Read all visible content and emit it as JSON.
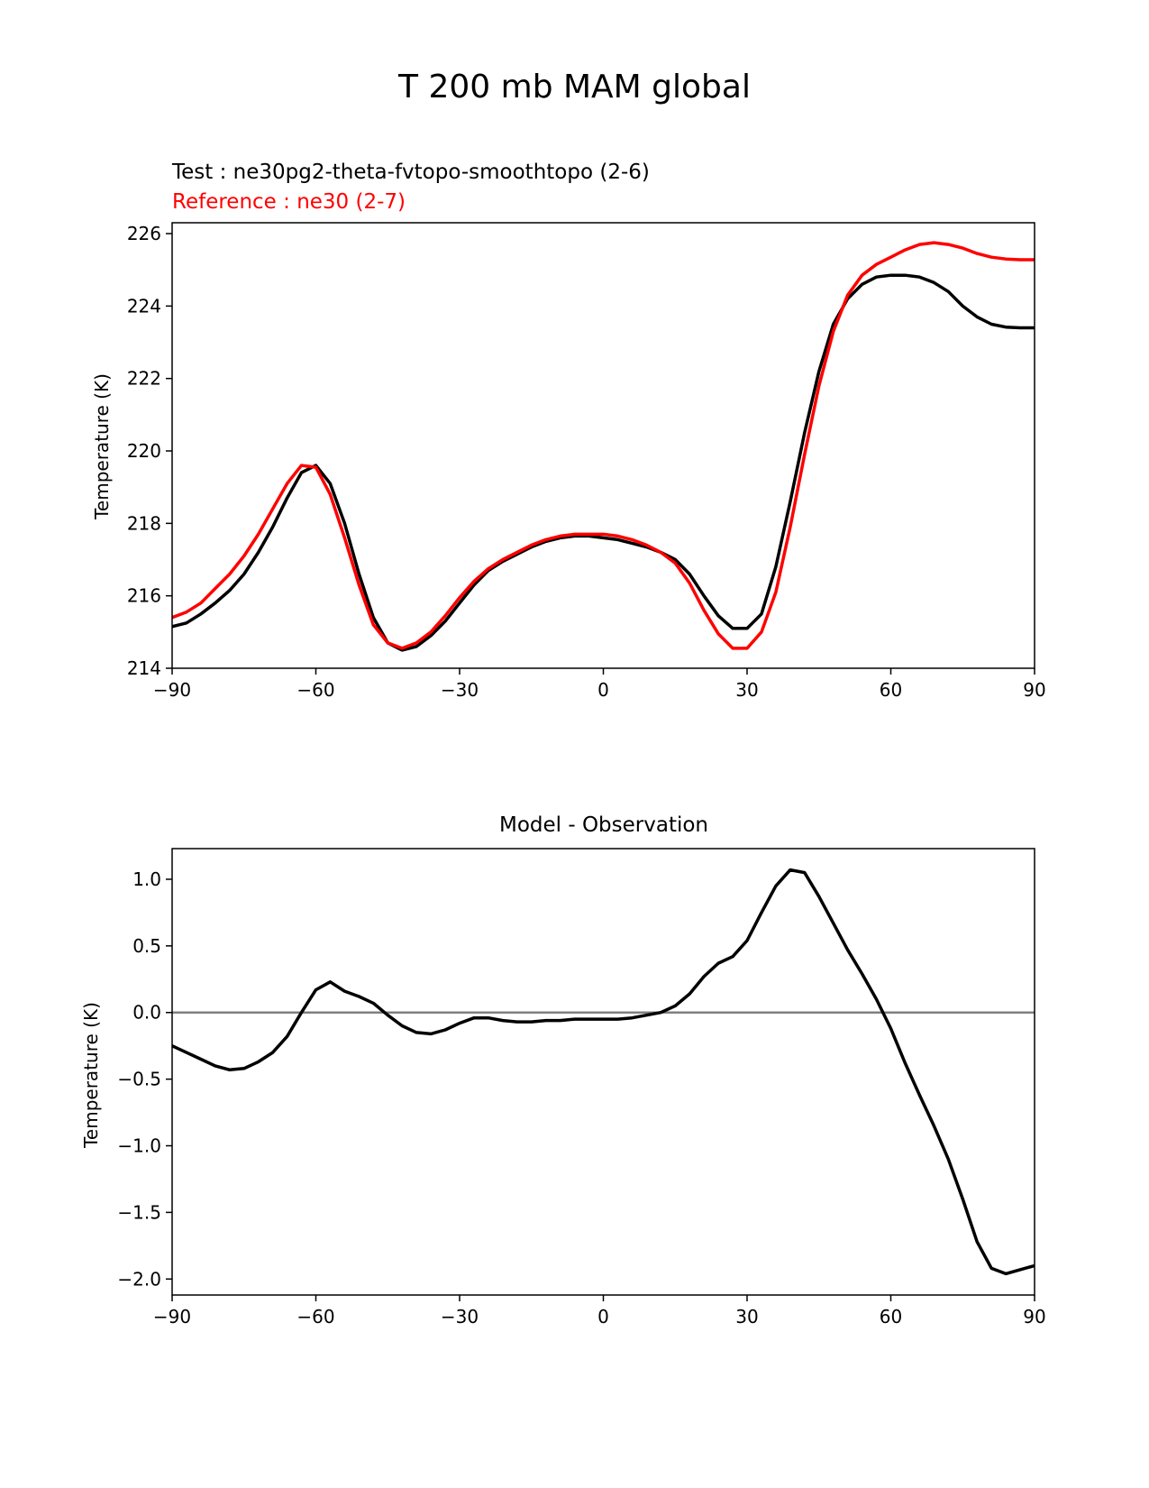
{
  "suptitle": "T 200 mb MAM global",
  "chart_data": [
    {
      "type": "line",
      "test_label": "Test : ne30pg2-theta-fvtopo-smoothtopo (2-6)",
      "reference_label": "Reference : ne30 (2-7)",
      "title": "",
      "xlabel": "",
      "ylabel": "Temperature (K)",
      "xlim": [
        -90,
        90
      ],
      "ylim": [
        214,
        226.3
      ],
      "xticks": [
        -90,
        -60,
        -30,
        0,
        30,
        60,
        90
      ],
      "xtick_labels": [
        "−90",
        "−60",
        "−30",
        "0",
        "30",
        "60",
        "90"
      ],
      "yticks": [
        214,
        216,
        218,
        220,
        222,
        224,
        226
      ],
      "ytick_labels": [
        "214",
        "216",
        "218",
        "220",
        "222",
        "224",
        "226"
      ],
      "grid": false,
      "series": [
        {
          "name": "Test",
          "color": "#000000",
          "x": [
            -90,
            -87,
            -84,
            -81,
            -78,
            -75,
            -72,
            -69,
            -66,
            -63,
            -60,
            -57,
            -54,
            -51,
            -48,
            -45,
            -42,
            -39,
            -36,
            -33,
            -30,
            -27,
            -24,
            -21,
            -18,
            -15,
            -12,
            -9,
            -6,
            -3,
            0,
            3,
            6,
            9,
            12,
            15,
            18,
            21,
            24,
            27,
            30,
            33,
            36,
            39,
            42,
            45,
            48,
            51,
            54,
            57,
            60,
            63,
            66,
            69,
            72,
            75,
            78,
            81,
            84,
            87,
            90
          ],
          "y": [
            215.15,
            215.25,
            215.5,
            215.8,
            216.15,
            216.6,
            217.2,
            217.9,
            218.7,
            219.4,
            219.6,
            219.1,
            218.0,
            216.6,
            215.4,
            214.7,
            214.5,
            214.6,
            214.9,
            215.3,
            215.8,
            216.3,
            216.7,
            216.95,
            217.15,
            217.35,
            217.5,
            217.6,
            217.65,
            217.65,
            217.6,
            217.55,
            217.45,
            217.35,
            217.2,
            217.0,
            216.6,
            216.0,
            215.45,
            215.1,
            215.1,
            215.5,
            216.8,
            218.6,
            220.5,
            222.2,
            223.5,
            224.2,
            224.6,
            224.8,
            224.85,
            224.85,
            224.8,
            224.65,
            224.4,
            224.0,
            223.7,
            223.5,
            223.42,
            223.4,
            223.4
          ]
        },
        {
          "name": "Reference",
          "color": "#ff0000",
          "x": [
            -90,
            -87,
            -84,
            -81,
            -78,
            -75,
            -72,
            -69,
            -66,
            -63,
            -60,
            -57,
            -54,
            -51,
            -48,
            -45,
            -42,
            -39,
            -36,
            -33,
            -30,
            -27,
            -24,
            -21,
            -18,
            -15,
            -12,
            -9,
            -6,
            -3,
            0,
            3,
            6,
            9,
            12,
            15,
            18,
            21,
            24,
            27,
            30,
            33,
            36,
            39,
            42,
            45,
            48,
            51,
            54,
            57,
            60,
            63,
            66,
            69,
            72,
            75,
            78,
            81,
            84,
            87,
            90
          ],
          "y": [
            215.4,
            215.55,
            215.8,
            216.2,
            216.6,
            217.1,
            217.7,
            218.4,
            219.1,
            219.6,
            219.55,
            218.8,
            217.6,
            216.3,
            215.2,
            214.7,
            214.55,
            214.7,
            215.0,
            215.45,
            215.95,
            216.4,
            216.75,
            217.0,
            217.2,
            217.4,
            217.55,
            217.65,
            217.7,
            217.7,
            217.7,
            217.65,
            217.55,
            217.4,
            217.2,
            216.9,
            216.35,
            215.6,
            214.95,
            214.55,
            214.55,
            215.0,
            216.1,
            217.9,
            219.9,
            221.8,
            223.3,
            224.3,
            224.85,
            225.15,
            225.35,
            225.55,
            225.7,
            225.75,
            225.7,
            225.6,
            225.45,
            225.35,
            225.3,
            225.28,
            225.28
          ]
        }
      ]
    },
    {
      "type": "line",
      "title": "Model - Observation",
      "xlabel": "",
      "ylabel": "Temperature (K)",
      "xlim": [
        -90,
        90
      ],
      "ylim": [
        -2.12,
        1.23
      ],
      "xticks": [
        -90,
        -60,
        -30,
        0,
        30,
        60,
        90
      ],
      "xtick_labels": [
        "−90",
        "−60",
        "−30",
        "0",
        "30",
        "60",
        "90"
      ],
      "yticks": [
        -2.0,
        -1.5,
        -1.0,
        -0.5,
        0.0,
        0.5,
        1.0
      ],
      "ytick_labels": [
        "−2.0",
        "−1.5",
        "−1.0",
        "−0.5",
        "0.0",
        "0.5",
        "1.0"
      ],
      "grid": false,
      "zero_line_color": "#808080",
      "series": [
        {
          "color": "#000000",
          "x": [
            -90,
            -87,
            -84,
            -81,
            -78,
            -75,
            -72,
            -69,
            -66,
            -63,
            -60,
            -57,
            -54,
            -51,
            -48,
            -45,
            -42,
            -39,
            -36,
            -33,
            -30,
            -27,
            -24,
            -21,
            -18,
            -15,
            -12,
            -9,
            -6,
            -3,
            0,
            3,
            6,
            9,
            12,
            15,
            18,
            21,
            24,
            27,
            30,
            33,
            36,
            39,
            42,
            45,
            48,
            51,
            54,
            57,
            60,
            63,
            66,
            69,
            72,
            75,
            78,
            81,
            84,
            87,
            90
          ],
          "y": [
            -0.25,
            -0.3,
            -0.35,
            -0.4,
            -0.43,
            -0.42,
            -0.37,
            -0.3,
            -0.18,
            0.0,
            0.17,
            0.23,
            0.16,
            0.12,
            0.07,
            -0.02,
            -0.1,
            -0.15,
            -0.16,
            -0.13,
            -0.08,
            -0.04,
            -0.04,
            -0.06,
            -0.07,
            -0.07,
            -0.06,
            -0.06,
            -0.05,
            -0.05,
            -0.05,
            -0.05,
            -0.04,
            -0.02,
            0.0,
            0.05,
            0.14,
            0.27,
            0.37,
            0.42,
            0.54,
            0.75,
            0.95,
            1.07,
            1.05,
            0.87,
            0.67,
            0.47,
            0.29,
            0.1,
            -0.12,
            -0.38,
            -0.62,
            -0.85,
            -1.1,
            -1.4,
            -1.72,
            -1.92,
            -1.96,
            -1.93,
            -1.9
          ]
        }
      ]
    }
  ]
}
